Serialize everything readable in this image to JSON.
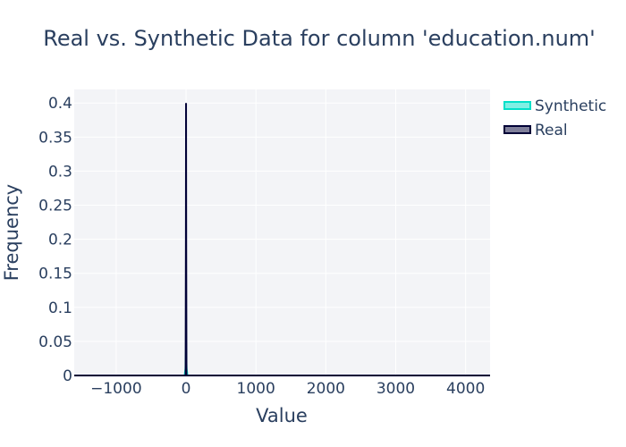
{
  "chart_data": {
    "type": "area",
    "title": "Real vs. Synthetic Data for column 'education.num'",
    "xlabel": "Value",
    "ylabel": "Frequency",
    "xlim": [
      -1600,
      4350
    ],
    "ylim": [
      0,
      0.42
    ],
    "x_ticks": [
      -1000,
      0,
      1000,
      2000,
      3000,
      4000
    ],
    "x_tick_labels": [
      "−1000",
      "0",
      "1000",
      "2000",
      "3000",
      "4000"
    ],
    "y_ticks": [
      0,
      0.05,
      0.1,
      0.15,
      0.2,
      0.25,
      0.3,
      0.35,
      0.4
    ],
    "y_tick_labels": [
      "0",
      "0.05",
      "0.1",
      "0.15",
      "0.2",
      "0.25",
      "0.3",
      "0.35",
      "0.4"
    ],
    "grid": true,
    "legend_position": "top-right",
    "series": [
      {
        "name": "Synthetic",
        "color": "#01e0c9",
        "x": [
          -1600,
          -20,
          -8,
          0,
          8,
          20,
          4350
        ],
        "y": [
          0,
          0,
          0.01,
          0.04,
          0.01,
          0,
          0
        ]
      },
      {
        "name": "Real",
        "color": "#000036",
        "x": [
          -1600,
          -6,
          -2,
          0,
          2,
          6,
          4350
        ],
        "y": [
          0,
          0,
          0.2,
          0.4,
          0.2,
          0,
          0
        ]
      }
    ]
  }
}
